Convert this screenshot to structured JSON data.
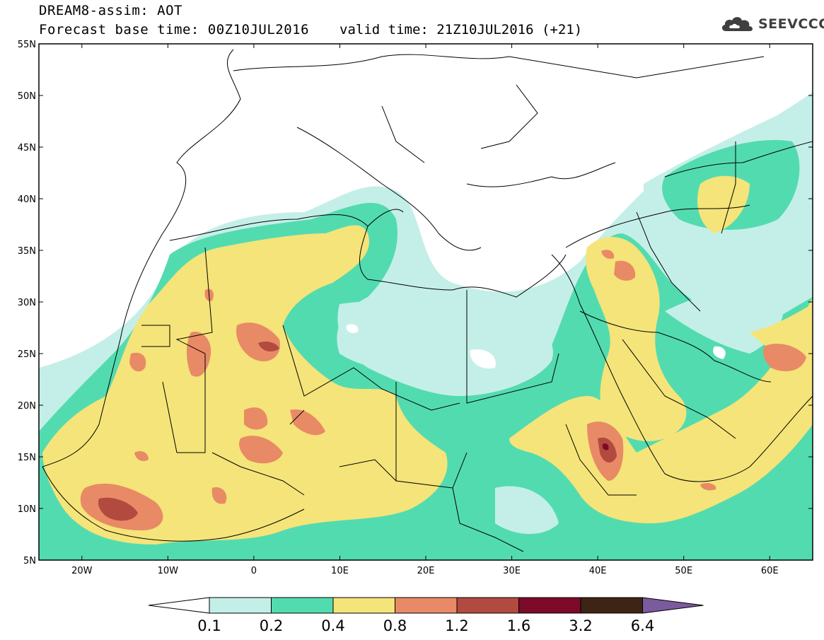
{
  "title": {
    "line1": "DREAM8-assim: AOT",
    "line2": "Forecast base time: 00Z10JUL2016",
    "valid": "valid time: 21Z10JUL2016 (+21)"
  },
  "logo": {
    "icon": "cloud-icon",
    "text": "SEEVCCC"
  },
  "map": {
    "lon_range": [
      -25,
      65
    ],
    "lat_range": [
      5,
      55
    ],
    "lat_labels": [
      "55N",
      "50N",
      "45N",
      "40N",
      "35N",
      "30N",
      "25N",
      "20N",
      "15N",
      "10N",
      "5N"
    ],
    "lon_labels": [
      "20W",
      "10W",
      "0",
      "10E",
      "20E",
      "30E",
      "40E",
      "50E",
      "60E"
    ]
  },
  "colorbar": {
    "levels": [
      "0.1",
      "0.2",
      "0.4",
      "0.8",
      "1.2",
      "1.6",
      "3.2",
      "6.4"
    ],
    "colors": [
      "#ffffff",
      "#c4efe8",
      "#53dbb0",
      "#f5e479",
      "#e88a66",
      "#b24a3f",
      "#7c0a28",
      "#3e2414",
      "#7c5a9e"
    ]
  }
}
